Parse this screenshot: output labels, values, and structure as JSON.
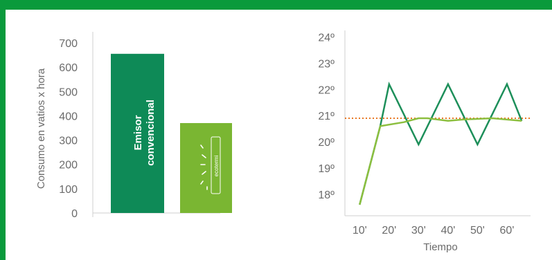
{
  "colors": {
    "frame": "#0a9a3c",
    "conventional_bar": "#0e8a57",
    "ecotermi_bar": "#7ab632",
    "conventional_line": "#1d8f5a",
    "ecotermi_line": "#8cbf3f",
    "target_line": "#e87722",
    "axis": "#cfcfcf",
    "text": "#6b6b6b"
  },
  "chart_data": [
    {
      "type": "bar",
      "ylabel": "Consumo en vatios x hora",
      "ylim": [
        0,
        700
      ],
      "yticks": [
        "0",
        "100",
        "200",
        "300",
        "400",
        "500",
        "600",
        "700"
      ],
      "categories": [
        "Emisor convencional",
        "ecotermi"
      ],
      "values": [
        655,
        370
      ],
      "bar_text": {
        "conventional_line1": "Emisor",
        "conventional_line2": "convencional"
      },
      "logo": {
        "name": "ecotermi-logo",
        "text": "ecotermi"
      }
    },
    {
      "type": "line",
      "xlabel": "Tiempo",
      "xticks": [
        "10'",
        "20'",
        "30'",
        "40'",
        "50'",
        "60'"
      ],
      "yticks": [
        "18º",
        "19º",
        "20º",
        "21º",
        "22º",
        "23º",
        "24º"
      ],
      "ylim": [
        17.6,
        24.2
      ],
      "target_temperature": 20.9,
      "series": [
        {
          "key": "conventional",
          "points": [
            [
              10,
              17.6
            ],
            [
              17,
              20.6
            ],
            [
              20,
              22.2
            ],
            [
              30,
              19.9
            ],
            [
              40,
              22.2
            ],
            [
              50,
              19.9
            ],
            [
              60,
              22.2
            ],
            [
              65,
              20.8
            ]
          ]
        },
        {
          "key": "ecotermi",
          "points": [
            [
              10,
              17.6
            ],
            [
              17,
              20.6
            ],
            [
              25,
              20.75
            ],
            [
              30,
              20.9
            ],
            [
              33,
              20.9
            ],
            [
              40,
              20.8
            ],
            [
              45,
              20.85
            ],
            [
              55,
              20.9
            ],
            [
              65,
              20.8
            ]
          ]
        }
      ]
    }
  ]
}
